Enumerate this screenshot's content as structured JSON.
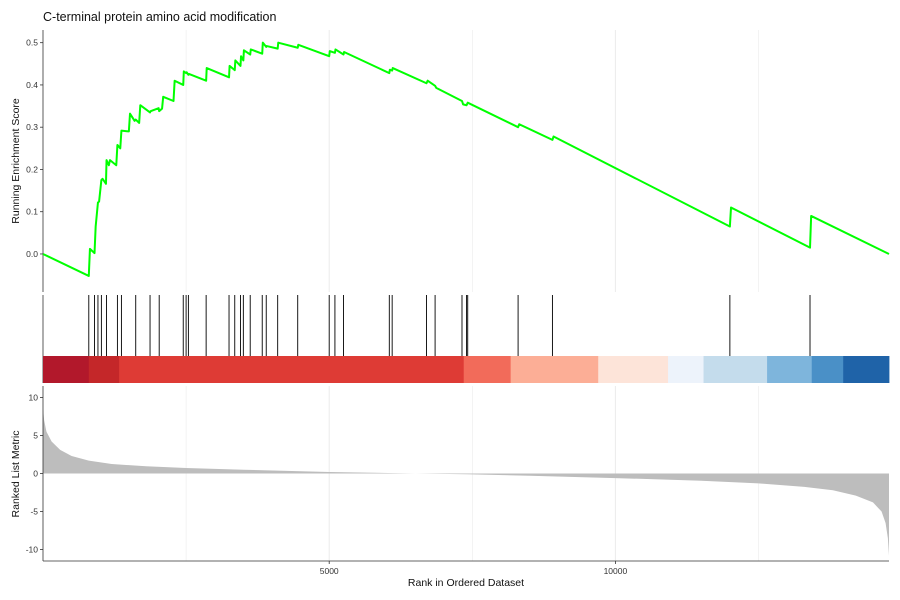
{
  "chart_data": {
    "type": "line",
    "title": "C-terminal protein amino acid modification",
    "xlabel": "Rank in Ordered Dataset",
    "xlim": [
      0,
      14780
    ],
    "x_ticks": [
      5000,
      10000
    ],
    "x_tick_labels": [
      "5000",
      "10000"
    ],
    "grid": "vertical major and minor lines only",
    "panels": [
      {
        "name": "running-score",
        "ylabel": "Running Enrichment Score",
        "ylim": [
          -0.09,
          0.53
        ],
        "y_ticks": [
          0.0,
          0.1,
          0.2,
          0.3,
          0.4,
          0.5
        ],
        "y_tick_labels": [
          "0.0",
          "0.1",
          "0.2",
          "0.3",
          "0.4",
          "0.5"
        ],
        "line_color": "#00ff00",
        "series": [
          {
            "x": [
              0,
              800,
              820,
              900,
              920,
              960,
              980,
              1020,
              1040,
              1100,
              1110,
              1150,
              1170,
              1280,
              1300,
              1350,
              1370,
              1500,
              1520,
              1600,
              1620,
              1680,
              1700,
              1870,
              1880,
              2020,
              2030,
              2080,
              2100,
              2280,
              2300,
              2450,
              2460,
              2500,
              2510,
              2540,
              2550,
              2850,
              2860,
              3250,
              3260,
              3350,
              3360,
              3450,
              3460,
              3500,
              3510,
              3620,
              3630,
              3830,
              3840,
              3900,
              3910,
              4100,
              4110,
              4450,
              4460,
              5000,
              5010,
              5100,
              5110,
              5250,
              5260,
              6050,
              6060,
              6100,
              6110,
              6700,
              6720,
              6850,
              6870,
              7320,
              7340,
              7400,
              7420,
              8300,
              8320,
              8900,
              8920,
              12000,
              12020,
              13400,
              13420,
              14780
            ],
            "y": [
              0.0,
              -0.052,
              0.012,
              0.002,
              0.065,
              0.122,
              0.124,
              0.175,
              0.178,
              0.166,
              0.222,
              0.21,
              0.222,
              0.21,
              0.258,
              0.25,
              0.292,
              0.29,
              0.332,
              0.315,
              0.318,
              0.31,
              0.352,
              0.335,
              0.338,
              0.345,
              0.338,
              0.344,
              0.372,
              0.362,
              0.41,
              0.4,
              0.432,
              0.428,
              0.43,
              0.424,
              0.426,
              0.41,
              0.44,
              0.418,
              0.445,
              0.435,
              0.458,
              0.445,
              0.468,
              0.458,
              0.482,
              0.472,
              0.484,
              0.474,
              0.5,
              0.49,
              0.492,
              0.486,
              0.5,
              0.488,
              0.495,
              0.468,
              0.48,
              0.476,
              0.484,
              0.472,
              0.478,
              0.428,
              0.436,
              0.434,
              0.44,
              0.404,
              0.41,
              0.398,
              0.393,
              0.362,
              0.354,
              0.352,
              0.358,
              0.3,
              0.307,
              0.27,
              0.278,
              0.065,
              0.11,
              0.015,
              0.09,
              0.0
            ]
          }
        ]
      },
      {
        "name": "gene-hits",
        "hit_color": "#000000",
        "hit_ranks": [
          800,
          900,
          960,
          1020,
          1110,
          1300,
          1370,
          1620,
          1870,
          2030,
          2450,
          2500,
          2540,
          2850,
          3250,
          3350,
          3450,
          3500,
          3620,
          3830,
          3900,
          4100,
          4450,
          5000,
          5100,
          5250,
          6050,
          6100,
          6700,
          6850,
          7320,
          7400,
          7420,
          8300,
          8900,
          12000,
          13400
        ]
      },
      {
        "name": "rank-colorbar",
        "segments": [
          {
            "from": 0,
            "to": 800,
            "color": "#b2182b"
          },
          {
            "from": 800,
            "to": 1330,
            "color": "#c42729"
          },
          {
            "from": 1330,
            "to": 7350,
            "color": "#de3b35"
          },
          {
            "from": 7350,
            "to": 8170,
            "color": "#f26b5a"
          },
          {
            "from": 8170,
            "to": 9700,
            "color": "#fcae96"
          },
          {
            "from": 9700,
            "to": 10920,
            "color": "#fde4d9"
          },
          {
            "from": 10920,
            "to": 11540,
            "color": "#edf3fb"
          },
          {
            "from": 11540,
            "to": 12650,
            "color": "#c4dcec"
          },
          {
            "from": 12650,
            "to": 13430,
            "color": "#7eb5dc"
          },
          {
            "from": 13430,
            "to": 13980,
            "color": "#4a90c7"
          },
          {
            "from": 13980,
            "to": 14780,
            "color": "#1f63a8"
          }
        ]
      },
      {
        "name": "ranked-metric",
        "ylabel": "Ranked List Metric",
        "type": "area",
        "fill": "#bdbdbd",
        "ylim": [
          -11.5,
          11.5
        ],
        "y_ticks": [
          10,
          5,
          0,
          -5,
          -10
        ],
        "y_tick_labels": [
          "10",
          "5",
          "0",
          "-5",
          "-10"
        ],
        "x": [
          0,
          20,
          60,
          150,
          300,
          500,
          800,
          1200,
          1800,
          2500,
          3500,
          5000,
          6500,
          7400,
          8500,
          10000,
          11500,
          12500,
          13300,
          13800,
          14200,
          14500,
          14650,
          14720,
          14760,
          14780
        ],
        "y": [
          8.5,
          7.0,
          5.5,
          4.2,
          3.1,
          2.3,
          1.7,
          1.25,
          0.95,
          0.72,
          0.5,
          0.2,
          0.0,
          -0.1,
          -0.3,
          -0.6,
          -0.95,
          -1.3,
          -1.75,
          -2.2,
          -2.9,
          -3.8,
          -5.0,
          -6.5,
          -8.5,
          -10.8
        ]
      }
    ]
  }
}
